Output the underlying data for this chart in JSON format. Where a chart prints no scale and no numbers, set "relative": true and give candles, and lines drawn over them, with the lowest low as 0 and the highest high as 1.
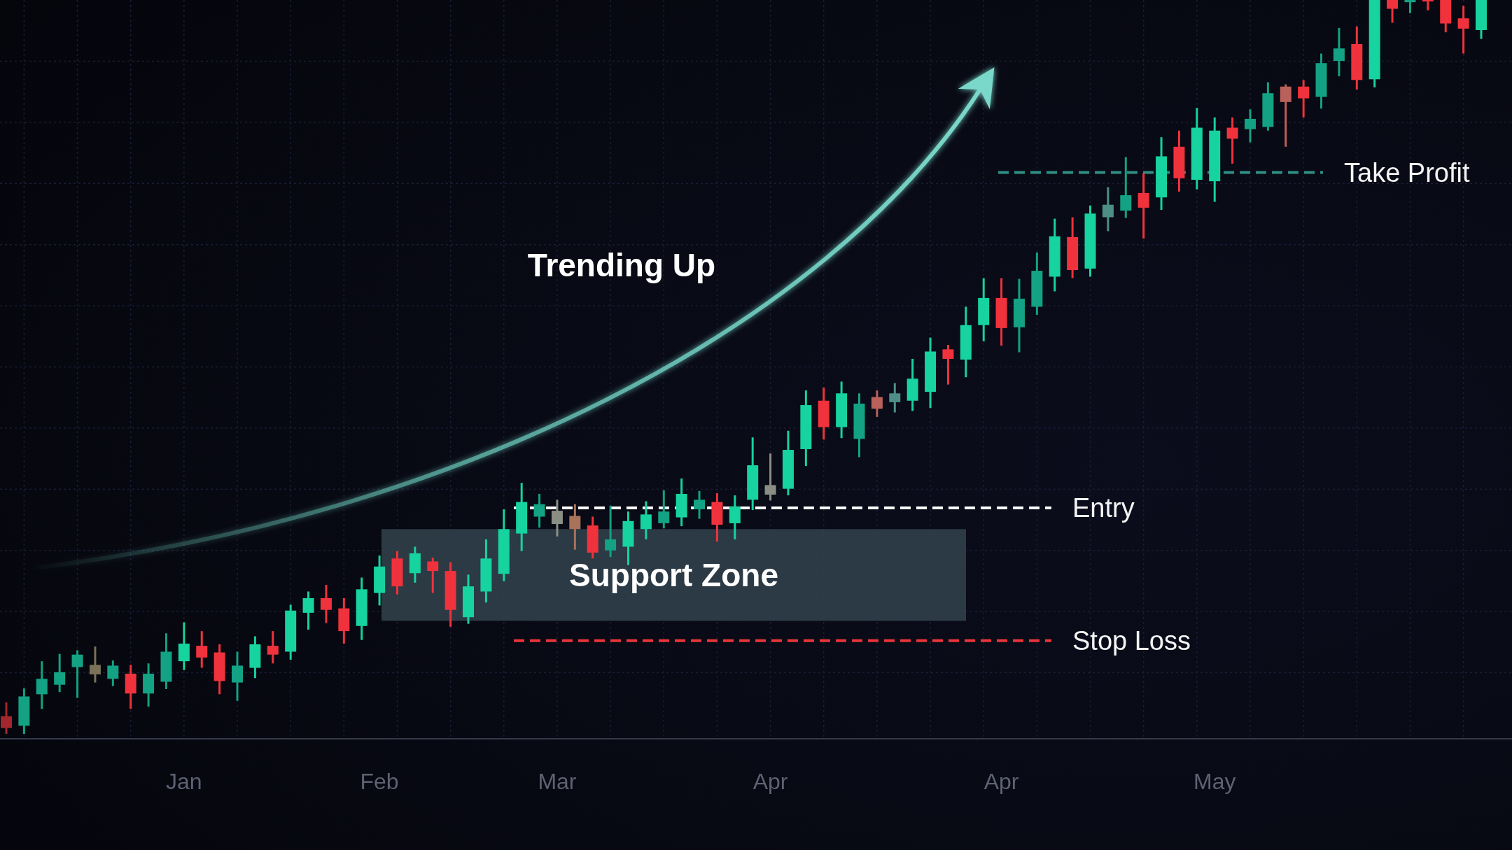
{
  "chart_data": {
    "type": "candlestick",
    "relative": true,
    "grid": true,
    "categories": [
      null,
      null,
      null,
      null,
      null,
      null,
      null,
      null,
      null,
      null,
      "Jan",
      null,
      null,
      null,
      null,
      null,
      null,
      null,
      null,
      null,
      null,
      "Feb",
      null,
      null,
      null,
      null,
      null,
      null,
      null,
      null,
      null,
      "Mar",
      null,
      null,
      null,
      null,
      null,
      null,
      null,
      null,
      null,
      null,
      null,
      "Apr",
      null,
      null,
      null,
      null,
      null,
      null,
      null,
      null,
      null,
      null,
      null,
      null,
      "Apr",
      null,
      null,
      null,
      null,
      null,
      null,
      null,
      null,
      null,
      null,
      null,
      "May",
      null,
      null,
      null,
      null,
      null,
      null,
      null,
      null,
      null,
      null,
      null,
      null,
      null,
      null,
      null
    ],
    "ohlc": [
      [
        0.024,
        0.043,
        0,
        0.008
      ],
      [
        0.011,
        0.062,
        0,
        0.051
      ],
      [
        0.054,
        0.099,
        0.034,
        0.075
      ],
      [
        0.067,
        0.109,
        0.057,
        0.084
      ],
      [
        0.091,
        0.114,
        0.049,
        0.108
      ],
      [
        0.094,
        0.119,
        0.07,
        0.081
      ],
      [
        0.075,
        0.1,
        0.065,
        0.093
      ],
      [
        0.082,
        0.094,
        0.034,
        0.055
      ],
      [
        0.055,
        0.096,
        0.037,
        0.082
      ],
      [
        0.071,
        0.137,
        0.061,
        0.112
      ],
      [
        0.099,
        0.152,
        0.087,
        0.123
      ],
      [
        0.12,
        0.14,
        0.09,
        0.104
      ],
      [
        0.111,
        0.122,
        0.054,
        0.072
      ],
      [
        0.07,
        0.112,
        0.045,
        0.093
      ],
      [
        0.09,
        0.133,
        0.076,
        0.122
      ],
      [
        0.12,
        0.14,
        0.096,
        0.108
      ],
      [
        0.112,
        0.176,
        0.101,
        0.168
      ],
      [
        0.165,
        0.194,
        0.142,
        0.185
      ],
      [
        0.185,
        0.203,
        0.151,
        0.169
      ],
      [
        0.171,
        0.185,
        0.123,
        0.14
      ],
      [
        0.147,
        0.213,
        0.128,
        0.197
      ],
      [
        0.192,
        0.243,
        0.175,
        0.228
      ],
      [
        0.239,
        0.249,
        0.19,
        0.201
      ],
      [
        0.219,
        0.255,
        0.206,
        0.246
      ],
      [
        0.235,
        0.24,
        0.192,
        0.222
      ],
      [
        0.222,
        0.234,
        0.146,
        0.169
      ],
      [
        0.159,
        0.217,
        0.15,
        0.201
      ],
      [
        0.194,
        0.265,
        0.179,
        0.239
      ],
      [
        0.218,
        0.306,
        0.208,
        0.279
      ],
      [
        0.273,
        0.342,
        0.249,
        0.316
      ],
      [
        0.296,
        0.327,
        0.281,
        0.313
      ],
      [
        0.304,
        0.319,
        0.269,
        0.286
      ],
      [
        0.297,
        0.313,
        0.251,
        0.279
      ],
      [
        0.284,
        0.296,
        0.239,
        0.247
      ],
      [
        0.25,
        0.311,
        0.241,
        0.265
      ],
      [
        0.255,
        0.303,
        0.23,
        0.29
      ],
      [
        0.279,
        0.317,
        0.265,
        0.299
      ],
      [
        0.287,
        0.332,
        0.28,
        0.303
      ],
      [
        0.295,
        0.348,
        0.283,
        0.327
      ],
      [
        0.306,
        0.331,
        0.293,
        0.319
      ],
      [
        0.316,
        0.328,
        0.262,
        0.285
      ],
      [
        0.287,
        0.325,
        0.265,
        0.31
      ],
      [
        0.319,
        0.404,
        0.305,
        0.366
      ],
      [
        0.339,
        0.382,
        0.318,
        0.326
      ],
      [
        0.334,
        0.413,
        0.325,
        0.387
      ],
      [
        0.388,
        0.468,
        0.365,
        0.448
      ],
      [
        0.454,
        0.472,
        0.401,
        0.418
      ],
      [
        0.418,
        0.48,
        0.403,
        0.464
      ],
      [
        0.402,
        0.464,
        0.377,
        0.45
      ],
      [
        0.459,
        0.468,
        0.432,
        0.443
      ],
      [
        0.452,
        0.478,
        0.438,
        0.464
      ],
      [
        0.454,
        0.511,
        0.44,
        0.484
      ],
      [
        0.466,
        0.54,
        0.444,
        0.521
      ],
      [
        0.524,
        0.53,
        0.476,
        0.511
      ],
      [
        0.51,
        0.582,
        0.486,
        0.557
      ],
      [
        0.557,
        0.621,
        0.535,
        0.594
      ],
      [
        0.594,
        0.621,
        0.529,
        0.553
      ],
      [
        0.554,
        0.62,
        0.52,
        0.593
      ],
      [
        0.582,
        0.656,
        0.571,
        0.631
      ],
      [
        0.623,
        0.702,
        0.603,
        0.678
      ],
      [
        0.677,
        0.704,
        0.621,
        0.632
      ],
      [
        0.634,
        0.72,
        0.623,
        0.709
      ],
      [
        0.704,
        0.745,
        0.685,
        0.721
      ],
      [
        0.713,
        0.786,
        0.703,
        0.734
      ],
      [
        0.737,
        0.764,
        0.675,
        0.717
      ],
      [
        0.731,
        0.813,
        0.714,
        0.787
      ],
      [
        0.8,
        0.822,
        0.739,
        0.757
      ],
      [
        0.755,
        0.853,
        0.742,
        0.826
      ],
      [
        0.753,
        0.84,
        0.725,
        0.822
      ],
      [
        0.826,
        0.84,
        0.777,
        0.811
      ],
      [
        0.824,
        0.851,
        0.806,
        0.838
      ],
      [
        0.827,
        0.888,
        0.822,
        0.873
      ],
      [
        0.882,
        0.885,
        0.8,
        0.861
      ],
      [
        0.882,
        0.891,
        0.84,
        0.866
      ],
      [
        0.868,
        0.927,
        0.852,
        0.914
      ],
      [
        0.917,
        0.962,
        0.896,
        0.934
      ],
      [
        0.94,
        0.964,
        0.878,
        0.891
      ],
      [
        0.892,
        1,
        0.881,
        1
      ],
      [
        1,
        1,
        0.969,
        0.988
      ],
      [
        0.997,
        1,
        0.982,
        1
      ],
      [
        1,
        1,
        0.986,
        0.998
      ],
      [
        1,
        1,
        0.956,
        0.968
      ],
      [
        0.975,
        0.992,
        0.927,
        0.961
      ],
      [
        0.959,
        1,
        0.947,
        1
      ]
    ],
    "colors": [
      "#a3262d",
      "#13a283",
      "#13a283",
      "#13a283",
      "#13a283",
      "#7a7258",
      "#13a283",
      "#f0323c",
      "#13a283",
      "#13a283",
      "#16d39f",
      "#f0323c",
      "#f0323c",
      "#13a283",
      "#16d39f",
      "#f0323c",
      "#16d39f",
      "#16d39f",
      "#f0323c",
      "#f0323c",
      "#16d39f",
      "#16d39f",
      "#f0323c",
      "#16d39f",
      "#f0323c",
      "#f0323c",
      "#16d39f",
      "#16d39f",
      "#16d39f",
      "#16d39f",
      "#13a283",
      "#8b8e85",
      "#a8735a",
      "#f0323c",
      "#13a283",
      "#16d39f",
      "#16d39f",
      "#13a283",
      "#16d39f",
      "#13a283",
      "#f0323c",
      "#16d39f",
      "#16d39f",
      "#8b8e85",
      "#16d39f",
      "#16d39f",
      "#f0323c",
      "#16d39f",
      "#13a283",
      "#b9615a",
      "#4d8f86",
      "#16d39f",
      "#16d39f",
      "#f0323c",
      "#16d39f",
      "#16d39f",
      "#f0323c",
      "#13a283",
      "#13a283",
      "#16d39f",
      "#f0323c",
      "#16d39f",
      "#4d8f86",
      "#13a283",
      "#f0323c",
      "#16d39f",
      "#f0323c",
      "#16d39f",
      "#16d39f",
      "#f0323c",
      "#13a283",
      "#13a283",
      "#b9615a",
      "#f0323c",
      "#13a283",
      "#13a283",
      "#f0323c",
      "#16d39f",
      "#f0323c",
      "#13a283",
      "#f0323c",
      "#f0323c",
      "#f0323c",
      "#16d39f"
    ],
    "ref_lines": [
      {
        "axis": "y",
        "value": 0.308,
        "label": "Entry",
        "color": "#ffffff",
        "line_style": "dashed"
      },
      {
        "axis": "y",
        "value": 0.127,
        "label": "Stop Loss",
        "color": "#e8353a",
        "line_style": "dashed"
      },
      {
        "axis": "y",
        "value": 0.765,
        "label": "Take Profit",
        "color": "#2f8f85",
        "line_style": "dashed"
      }
    ],
    "bands": [
      {
        "axis": "y",
        "from": 0.154,
        "to": 0.279,
        "label": "Support Zone",
        "color": "#33434e"
      }
    ],
    "annotations": [
      "Trending Up"
    ]
  }
}
